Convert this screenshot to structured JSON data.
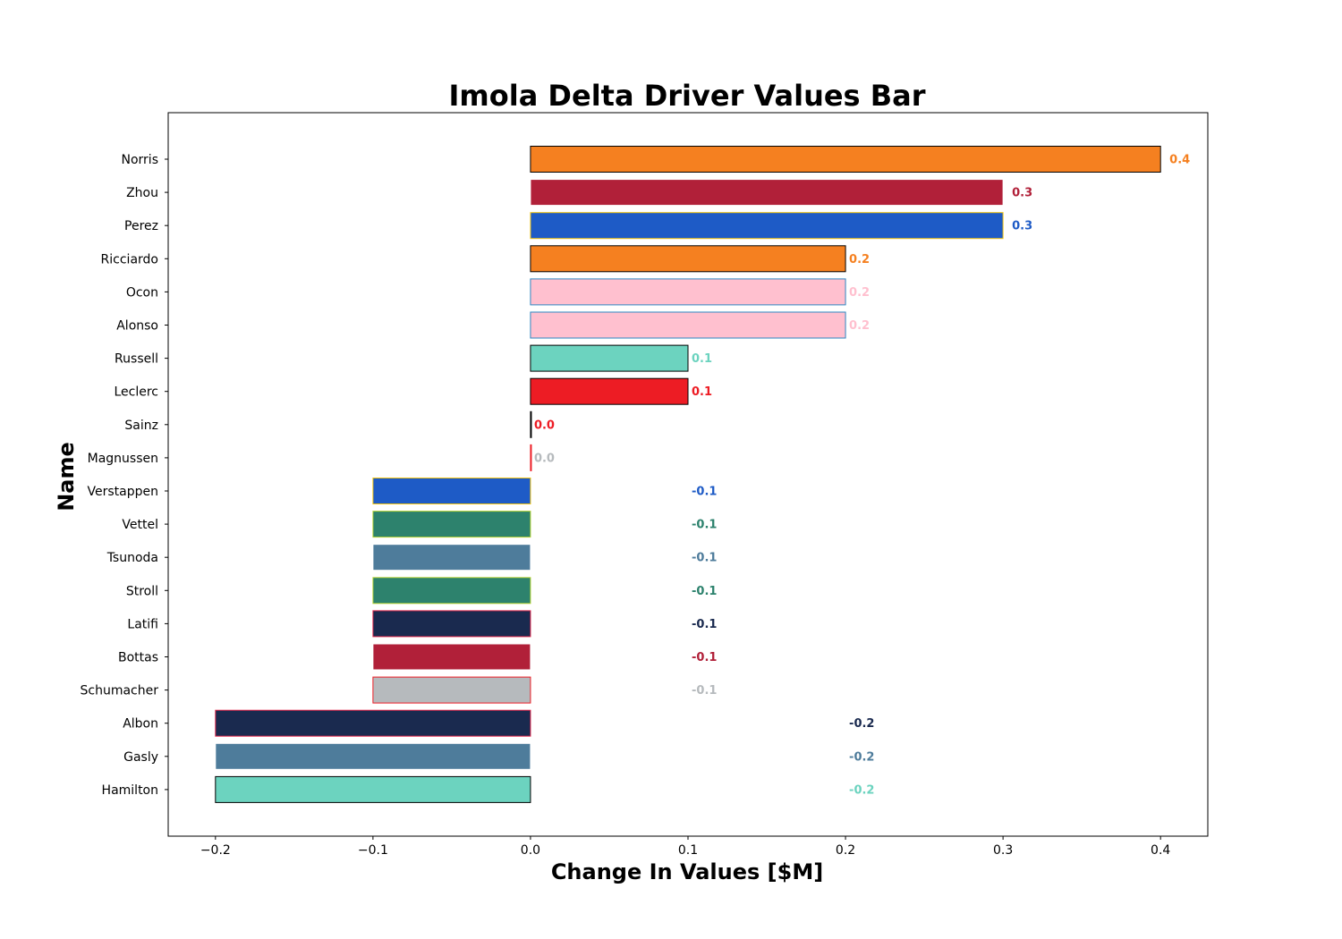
{
  "chart_data": {
    "type": "bar",
    "orientation": "horizontal",
    "title": "Imola Delta Driver Values Bar",
    "xlabel": "Change In Values [$M]",
    "ylabel": "Name",
    "xlim": [
      -0.23,
      0.43
    ],
    "xticks": [
      -0.2,
      -0.1,
      0.0,
      0.1,
      0.2,
      0.3,
      0.4
    ],
    "xtick_labels": [
      "−0.2",
      "−0.1",
      "0.0",
      "0.1",
      "0.2",
      "0.3",
      "0.4"
    ],
    "grid": false,
    "categories": [
      "Norris",
      "Zhou",
      "Perez",
      "Ricciardo",
      "Ocon",
      "Alonso",
      "Russell",
      "Leclerc",
      "Sainz",
      "Magnussen",
      "Verstappen",
      "Vettel",
      "Tsunoda",
      "Stroll",
      "Latifi",
      "Bottas",
      "Schumacher",
      "Albon",
      "Gasly",
      "Hamilton"
    ],
    "values": [
      0.4,
      0.3,
      0.3,
      0.2,
      0.2,
      0.2,
      0.1,
      0.1,
      0.0,
      0.0,
      -0.1,
      -0.1,
      -0.1,
      -0.1,
      -0.1,
      -0.1,
      -0.1,
      -0.2,
      -0.2,
      -0.2
    ],
    "value_labels": [
      "0.4",
      "0.3",
      "0.3",
      "0.2",
      "0.2",
      "0.2",
      "0.1",
      "0.1",
      "0.0",
      "0.0",
      "-0.1",
      "-0.1",
      "-0.1",
      "-0.1",
      "-0.1",
      "-0.1",
      "-0.1",
      "-0.2",
      "-0.2",
      "-0.2"
    ],
    "bar_colors": [
      "#F58020",
      "#B12039",
      "#1E5BC6",
      "#F58020",
      "#FFC0CF",
      "#FFC0CF",
      "#6CD3BF",
      "#ED1C24",
      "#ED1C24",
      "#B6BABD",
      "#1E5BC6",
      "#2D826D",
      "#4E7C9B",
      "#2D826D",
      "#1A2A4F",
      "#B12039",
      "#B6BABD",
      "#1A2A4F",
      "#4E7C9B",
      "#6CD3BF"
    ],
    "edge_colors": [
      "#000000",
      "#FFFFFF",
      "#F1C40F",
      "#000000",
      "#2E86C1",
      "#2E86C1",
      "#000000",
      "#000000",
      "#000000",
      "#ED1C24",
      "#F1C40F",
      "#B5D334",
      "#FFFFFF",
      "#B5D334",
      "#E0254A",
      "#FFFFFF",
      "#ED1C24",
      "#E0254A",
      "#FFFFFF",
      "#000000"
    ]
  }
}
